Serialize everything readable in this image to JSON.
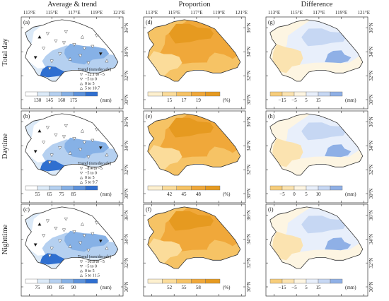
{
  "columns": [
    "Average & trend",
    "Proportion",
    "Difference"
  ],
  "rows": [
    "Total day",
    "Daytime",
    "Nighttime"
  ],
  "lon_ticks": [
    "113°E",
    "115°E",
    "117°E",
    "119°E",
    "121°E"
  ],
  "lat_ticks": [
    "36°N",
    "34°N",
    "32°N",
    "30°N"
  ],
  "panels": [
    {
      "label": "(a)",
      "type": "average",
      "colorbar": {
        "values": [
          "130",
          "145",
          "160",
          "175"
        ],
        "unit": "(mm)"
      },
      "legend_title": "Trend (mm/decade)",
      "legend": [
        "−12.1 to −5",
        "−5 to 0",
        "0 to 5",
        "5 to 10.7"
      ]
    },
    {
      "label": "(d)",
      "type": "proportion",
      "colorbar": {
        "values": [
          "15",
          "17",
          "19"
        ],
        "unit": "(%)"
      }
    },
    {
      "label": "(g)",
      "type": "difference",
      "colorbar": {
        "values": [
          "−15",
          "−5",
          "5",
          "15"
        ],
        "unit": "(mm)"
      }
    },
    {
      "label": "(b)",
      "type": "average",
      "colorbar": {
        "values": [
          "55",
          "65",
          "75",
          "85"
        ],
        "unit": "(mm)"
      },
      "legend_title": "Trend (mm/decade)",
      "legend": [
        "−8.4 to −5",
        "−5 to 0",
        "0 to 5",
        "5 to 9.7"
      ]
    },
    {
      "label": "(e)",
      "type": "proportion",
      "colorbar": {
        "values": [
          "42",
          "45",
          "48"
        ],
        "unit": "(%)"
      }
    },
    {
      "label": "(h)",
      "type": "difference",
      "colorbar": {
        "values": [
          "−5",
          "0",
          "5",
          "10"
        ],
        "unit": "(mm)"
      }
    },
    {
      "label": "(c)",
      "type": "average",
      "colorbar": {
        "values": [
          "75",
          "80",
          "85",
          "90"
        ],
        "unit": "(mm)"
      },
      "legend_title": "Trend (mm/decade)",
      "legend": [
        "−10.8 to −5",
        "−5 to 0",
        "0 to 5",
        "5 to 11.5"
      ]
    },
    {
      "label": "(f)",
      "type": "proportion",
      "colorbar": {
        "values": [
          "52",
          "55",
          "58"
        ],
        "unit": "(%)"
      }
    },
    {
      "label": "(i)",
      "type": "difference",
      "colorbar": {
        "values": [
          "−15",
          "−5",
          "5",
          "15"
        ],
        "unit": "(mm)"
      }
    }
  ],
  "colors": {
    "blues": [
      "#ffffff",
      "#dceaf8",
      "#b5d0f0",
      "#86b1e6",
      "#5d92db",
      "#2f6fd0",
      "#1a56c2"
    ],
    "oranges": [
      "#fdf0cf",
      "#fbdc9a",
      "#f6c365",
      "#f0a83a",
      "#e69a20"
    ],
    "diverging": [
      "#f7cd7a",
      "#fbe3b0",
      "#fdf5e2",
      "#e8effb",
      "#c6d7f3",
      "#8fb0e6"
    ]
  }
}
